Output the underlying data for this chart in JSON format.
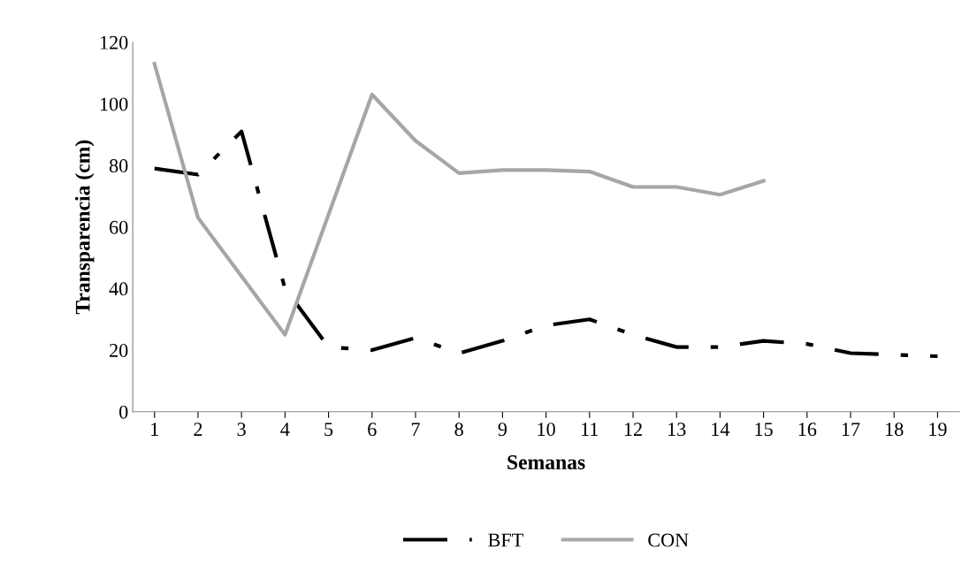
{
  "chart_data": {
    "type": "line",
    "xlabel": "Semanas",
    "ylabel": "Transparencia (cm)",
    "categories": [
      "1",
      "2",
      "3",
      "4",
      "5",
      "6",
      "7",
      "8",
      "9",
      "10",
      "11",
      "12",
      "13",
      "14",
      "15",
      "16",
      "17",
      "18",
      "19"
    ],
    "series": [
      {
        "name": "BFT",
        "color": "#000000",
        "line_style": "dashdot",
        "values": [
          79,
          77,
          91,
          40,
          21,
          20,
          24,
          19,
          23,
          28,
          30,
          25,
          21,
          21,
          23,
          22,
          19,
          18.5,
          18
        ]
      },
      {
        "name": "CON",
        "color": "#a6a6a6",
        "line_style": "solid",
        "values": [
          113,
          63,
          44,
          25,
          64,
          103,
          88,
          77.5,
          78.5,
          78.5,
          78,
          73,
          73,
          70.5,
          75,
          null,
          null,
          null,
          null
        ]
      }
    ],
    "ylim": [
      0,
      120
    ],
    "yticks": [
      0,
      20,
      40,
      60,
      80,
      100,
      120
    ],
    "grid": false,
    "legend": "bottom",
    "marker": "none"
  }
}
